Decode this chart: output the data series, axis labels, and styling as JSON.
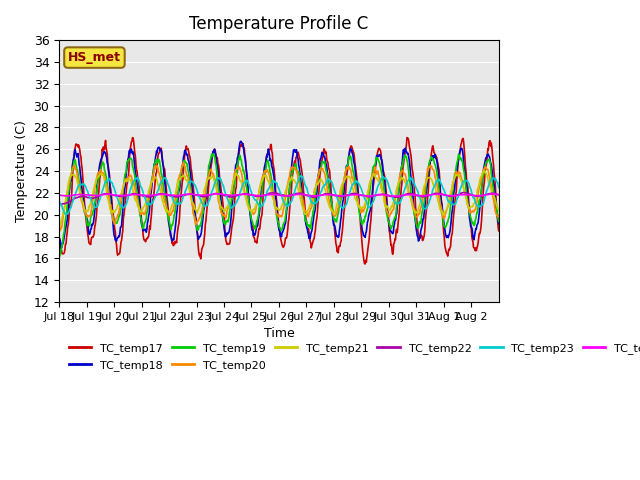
{
  "title": "Temperature Profile C",
  "xlabel": "Time",
  "ylabel": "Temperature (C)",
  "ylim": [
    12,
    36
  ],
  "yticks": [
    12,
    14,
    16,
    18,
    20,
    22,
    24,
    26,
    28,
    30,
    32,
    34,
    36
  ],
  "annotation": "HS_met",
  "bg_color": "#e8e8e8",
  "series_colors": {
    "TC_temp17": "#cc0000",
    "TC_temp18": "#0000cc",
    "TC_temp19": "#00cc00",
    "TC_temp20": "#ff8800",
    "TC_temp21": "#cccc00",
    "TC_temp22": "#aa00aa",
    "TC_temp23": "#00cccc",
    "TC_temp24": "#ff00ff"
  },
  "xtick_labels": [
    "Jul 18",
    "Jul 19",
    "Jul 20",
    "Jul 21",
    "Jul 22",
    "Jul 23",
    "Jul 24",
    "Jul 25",
    "Jul 26",
    "Jul 27",
    "Jul 28",
    "Jul 29",
    "Jul 30",
    "Jul 31",
    "Aug 1",
    "Aug 2"
  ],
  "num_days": 16,
  "points_per_day": 48
}
